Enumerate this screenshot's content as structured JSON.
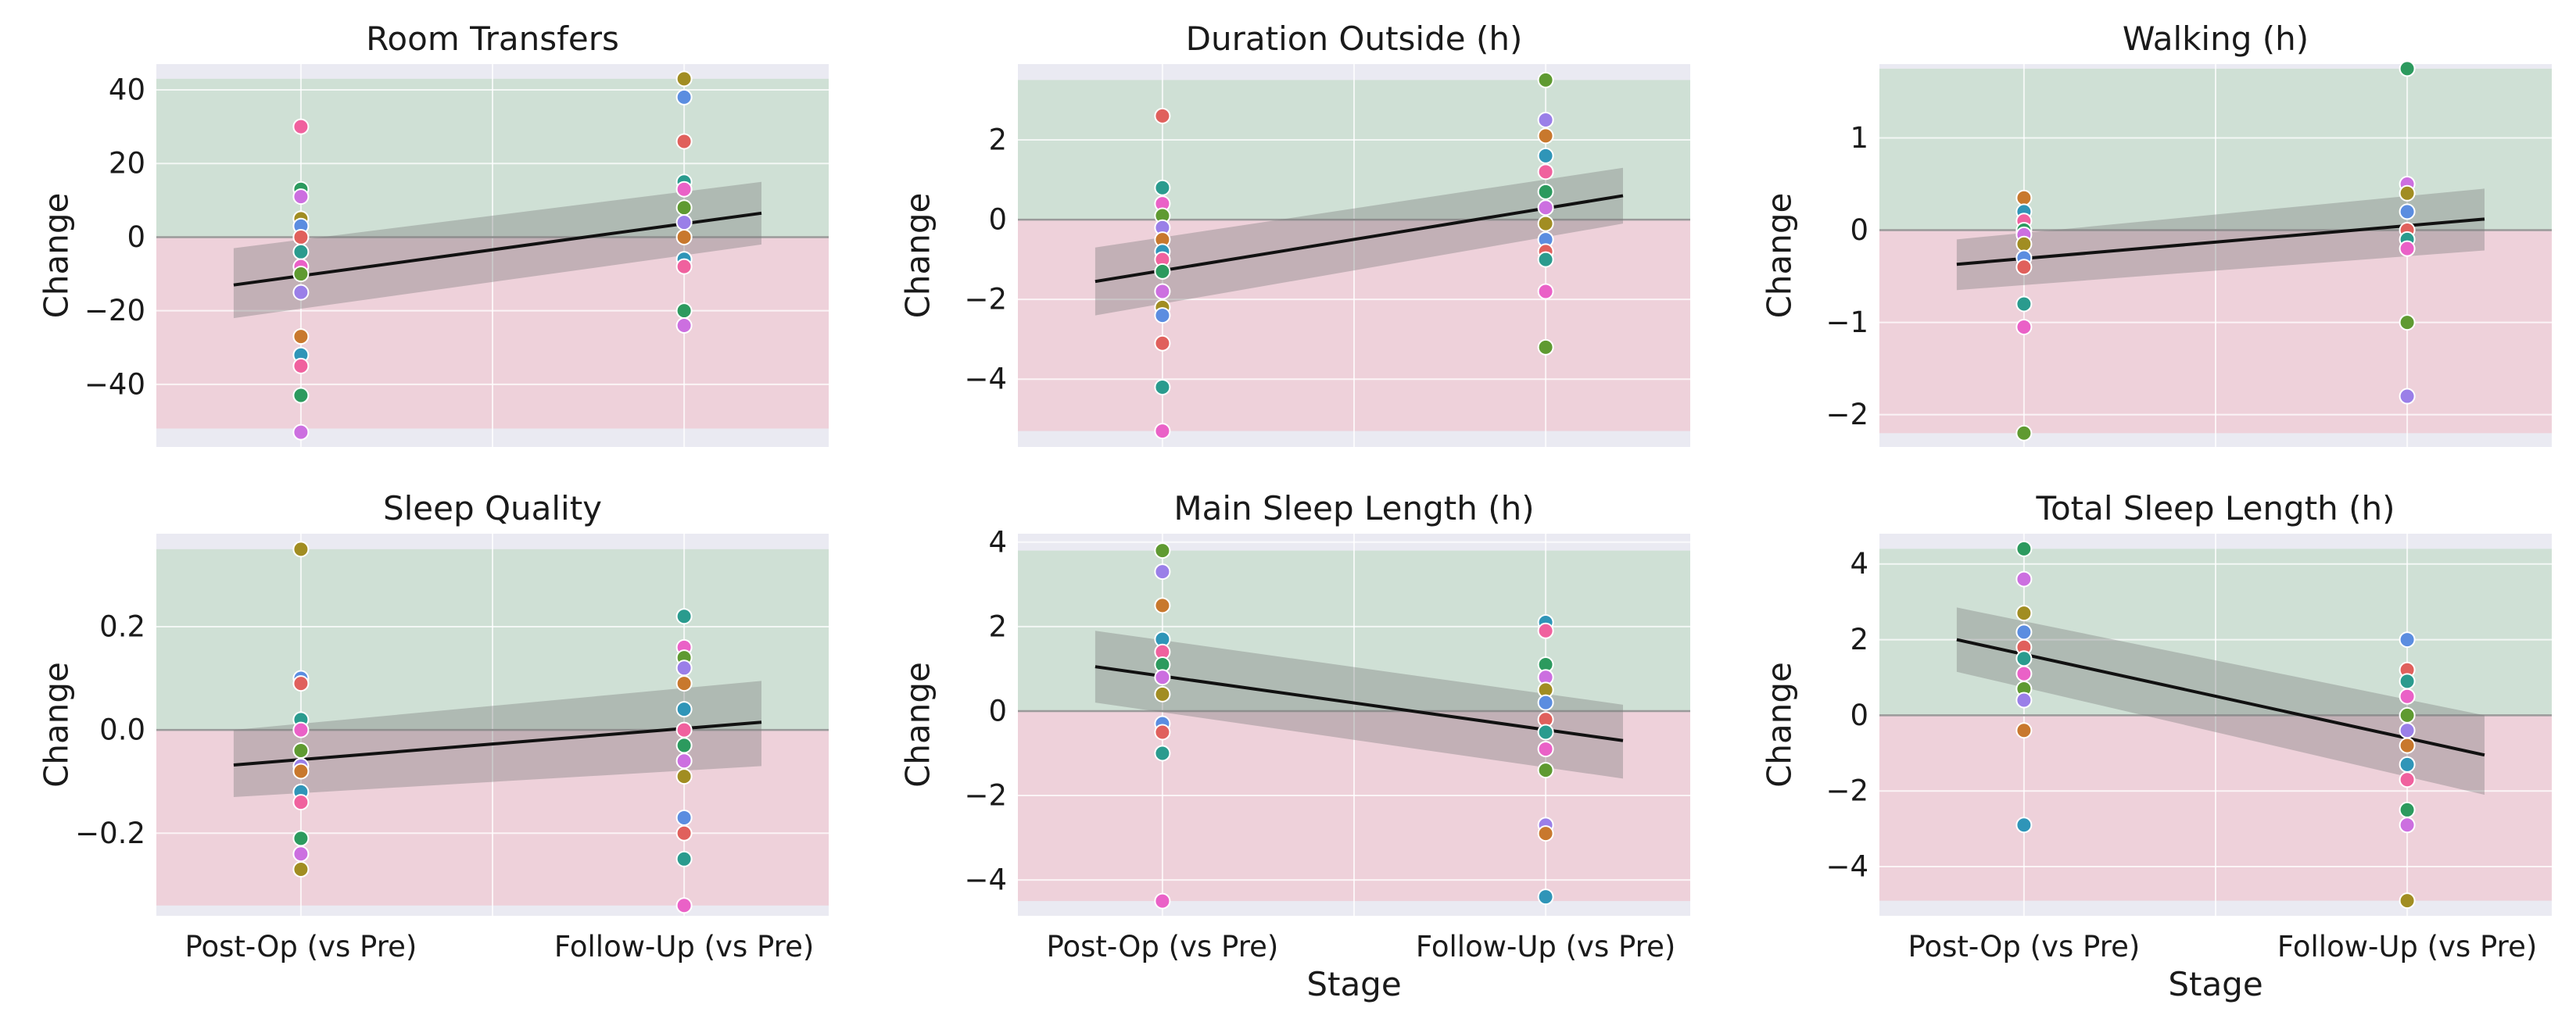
{
  "chart_data": [
    {
      "type": "scatter",
      "title": "Room Transfers",
      "ylabel": "Change",
      "xlabel": "",
      "categories": [
        "Post-Op (vs Pre)",
        "Follow-Up (vs Pre)"
      ],
      "yticks": [
        40,
        20,
        0,
        -20,
        -40
      ],
      "ytick_labels": [
        "40",
        "20",
        "0",
        "−20",
        "−40"
      ],
      "ylim": [
        -57,
        47
      ],
      "positive_band_top": 43,
      "negative_band_bottom": -52,
      "trend_line": {
        "start": -13,
        "end": 6.5
      },
      "ci_band": {
        "lower_start": -22,
        "upper_start": -3,
        "lower_end": -2,
        "upper_end": 15
      },
      "series": [
        {
          "name": "Post-Op (vs Pre)",
          "x": 0,
          "values": [
            30,
            13,
            11,
            5,
            3,
            0,
            -4,
            -8,
            -10,
            -15,
            -27,
            -32,
            -35,
            -43,
            -53
          ]
        },
        {
          "name": "Follow-Up (vs Pre)",
          "x": 1,
          "values": [
            43,
            38,
            26,
            15,
            13,
            8,
            4,
            0,
            -6,
            -8,
            -20,
            -24
          ]
        }
      ]
    },
    {
      "type": "scatter",
      "title": "Duration Outside (h)",
      "ylabel": "Change",
      "xlabel": "",
      "categories": [
        "Post-Op (vs Pre)",
        "Follow-Up (vs Pre)"
      ],
      "yticks": [
        2,
        0,
        -2,
        -4
      ],
      "ytick_labels": [
        "2",
        "0",
        "−2",
        "−4"
      ],
      "ylim": [
        -5.7,
        3.9
      ],
      "positive_band_top": 3.5,
      "negative_band_bottom": -5.3,
      "trend_line": {
        "start": -1.55,
        "end": 0.6
      },
      "ci_band": {
        "lower_start": -2.4,
        "upper_start": -0.7,
        "lower_end": -0.1,
        "upper_end": 1.3
      },
      "series": [
        {
          "name": "Post-Op (vs Pre)",
          "x": 0,
          "values": [
            2.6,
            0.8,
            0.4,
            0.1,
            -0.2,
            -0.5,
            -0.8,
            -1.0,
            -1.3,
            -1.8,
            -2.2,
            -2.4,
            -3.1,
            -4.2,
            -5.3
          ]
        },
        {
          "name": "Follow-Up (vs Pre)",
          "x": 1,
          "values": [
            3.5,
            2.5,
            2.1,
            1.6,
            1.2,
            0.7,
            0.3,
            -0.1,
            -0.5,
            -0.8,
            -1.0,
            -1.8,
            -3.2
          ]
        }
      ]
    },
    {
      "type": "scatter",
      "title": "Walking (h)",
      "ylabel": "Change",
      "xlabel": "",
      "categories": [
        "Post-Op (vs Pre)",
        "Follow-Up (vs Pre)"
      ],
      "yticks": [
        1,
        0,
        -1,
        -2
      ],
      "ytick_labels": [
        "1",
        "0",
        "−1",
        "−2"
      ],
      "ylim": [
        -2.35,
        1.8
      ],
      "positive_band_top": 1.75,
      "negative_band_bottom": -2.2,
      "trend_line": {
        "start": -0.37,
        "end": 0.12
      },
      "ci_band": {
        "lower_start": -0.65,
        "upper_start": -0.1,
        "lower_end": -0.22,
        "upper_end": 0.45
      },
      "series": [
        {
          "name": "Post-Op (vs Pre)",
          "x": 0,
          "values": [
            0.35,
            0.2,
            0.1,
            0.0,
            -0.05,
            -0.15,
            -0.3,
            -0.4,
            -0.8,
            -1.05,
            -2.2
          ]
        },
        {
          "name": "Follow-Up (vs Pre)",
          "x": 1,
          "values": [
            1.75,
            0.5,
            0.4,
            0.2,
            0.0,
            -0.1,
            -0.2,
            -1.0,
            -1.8
          ]
        }
      ]
    },
    {
      "type": "scatter",
      "title": "Sleep Quality",
      "ylabel": "Change",
      "xlabel": "",
      "categories": [
        "Post-Op (vs Pre)",
        "Follow-Up (vs Pre)"
      ],
      "yticks": [
        0.2,
        0.0,
        -0.2
      ],
      "ytick_labels": [
        "0.2",
        "0.0",
        "−0.2"
      ],
      "ylim": [
        -0.36,
        0.38
      ],
      "positive_band_top": 0.35,
      "negative_band_bottom": -0.34,
      "trend_line": {
        "start": -0.068,
        "end": 0.015
      },
      "ci_band": {
        "lower_start": -0.13,
        "upper_start": 0.0,
        "lower_end": -0.07,
        "upper_end": 0.095
      },
      "series": [
        {
          "name": "Post-Op (vs Pre)",
          "x": 0,
          "values": [
            0.35,
            0.1,
            0.09,
            0.02,
            0.0,
            -0.04,
            -0.07,
            -0.08,
            -0.12,
            -0.14,
            -0.21,
            -0.24,
            -0.27
          ]
        },
        {
          "name": "Follow-Up (vs Pre)",
          "x": 1,
          "values": [
            0.22,
            0.16,
            0.14,
            0.12,
            0.09,
            0.04,
            0.0,
            -0.03,
            -0.06,
            -0.09,
            -0.17,
            -0.2,
            -0.25,
            -0.34
          ]
        }
      ]
    },
    {
      "type": "scatter",
      "title": "Main Sleep Length (h)",
      "ylabel": "Change",
      "xlabel": "Stage",
      "categories": [
        "Post-Op (vs Pre)",
        "Follow-Up (vs Pre)"
      ],
      "yticks": [
        4,
        2,
        0,
        -2,
        -4
      ],
      "ytick_labels": [
        "4",
        "2",
        "0",
        "−2",
        "−4"
      ],
      "ylim": [
        -4.85,
        4.2
      ],
      "positive_band_top": 3.8,
      "negative_band_bottom": -4.5,
      "trend_line": {
        "start": 1.05,
        "end": -0.7
      },
      "ci_band": {
        "lower_start": 0.2,
        "upper_start": 1.9,
        "lower_end": -1.6,
        "upper_end": 0.15
      },
      "series": [
        {
          "name": "Post-Op (vs Pre)",
          "x": 0,
          "values": [
            3.8,
            3.3,
            2.5,
            1.7,
            1.4,
            1.1,
            0.8,
            0.4,
            -0.3,
            -0.5,
            -1.0,
            -4.5
          ]
        },
        {
          "name": "Follow-Up (vs Pre)",
          "x": 1,
          "values": [
            2.1,
            1.9,
            1.1,
            0.8,
            0.5,
            0.2,
            -0.2,
            -0.5,
            -0.9,
            -1.4,
            -2.7,
            -2.9,
            -4.4
          ]
        }
      ]
    },
    {
      "type": "scatter",
      "title": "Total Sleep Length (h)",
      "ylabel": "Change",
      "xlabel": "Stage",
      "categories": [
        "Post-Op (vs Pre)",
        "Follow-Up (vs Pre)"
      ],
      "yticks": [
        4,
        2,
        0,
        -2,
        -4
      ],
      "ytick_labels": [
        "4",
        "2",
        "0",
        "−2",
        "−4"
      ],
      "ylim": [
        -5.3,
        4.8
      ],
      "positive_band_top": 4.4,
      "negative_band_bottom": -4.9,
      "trend_line": {
        "start": 2.0,
        "end": -1.05
      },
      "ci_band": {
        "lower_start": 1.15,
        "upper_start": 2.85,
        "lower_end": -2.1,
        "upper_end": 0.0
      },
      "series": [
        {
          "name": "Post-Op (vs Pre)",
          "x": 0,
          "values": [
            4.4,
            3.6,
            2.7,
            2.2,
            1.8,
            1.5,
            1.1,
            0.7,
            0.4,
            -0.4,
            -2.9
          ]
        },
        {
          "name": "Follow-Up (vs Pre)",
          "x": 1,
          "values": [
            2.0,
            1.2,
            0.9,
            0.5,
            0.0,
            -0.4,
            -0.8,
            -1.3,
            -1.7,
            -2.5,
            -2.9,
            -4.9
          ]
        }
      ]
    }
  ],
  "colors": {
    "axes_bg": "#eaeaf2",
    "positive_band": "#cfe0d5",
    "negative_band": "#eed1da",
    "grid": "#ffffff",
    "zero_line": "#9a9a9a",
    "trend": "#111111",
    "ci": "#7b7b7b",
    "points": [
      "#f0619e",
      "#e0605c",
      "#c8782d",
      "#a18d22",
      "#5f9a31",
      "#2c9a5e",
      "#2a9b8e",
      "#2f95b8",
      "#5b8de0",
      "#9a7fe8",
      "#cc6fe0",
      "#ea61c7"
    ]
  }
}
